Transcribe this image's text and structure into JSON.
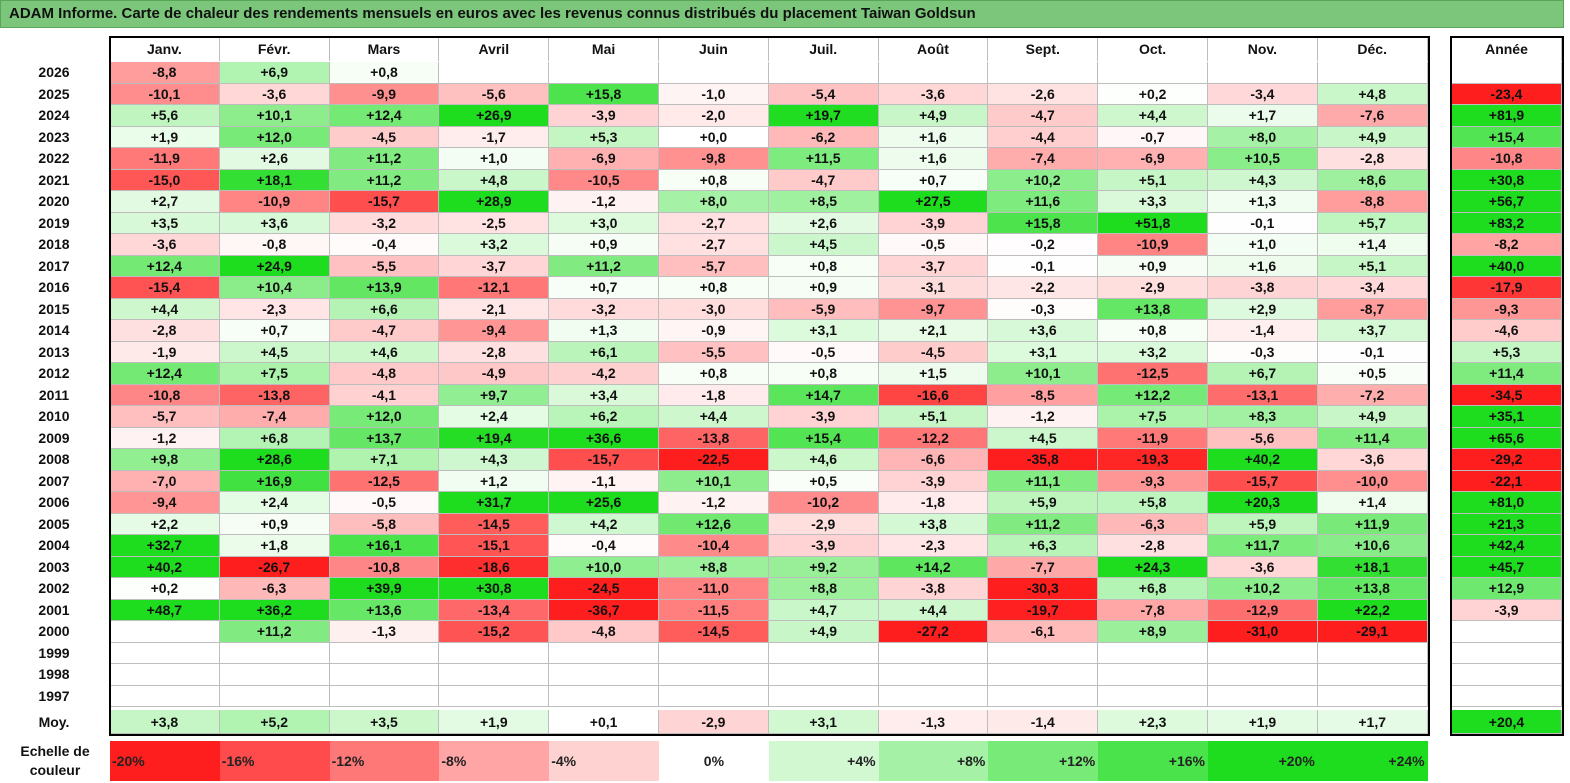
{
  "title": "ADAM Informe. Carte de chaleur des rendements mensuels en euros avec les revenus connus distribués du placement Taiwan Goldsun",
  "chart_data": {
    "type": "heatmap",
    "title": "ADAM Informe. Carte de chaleur des rendements mensuels en euros avec les revenus connus distribués du placement Taiwan Goldsun",
    "months": [
      "Janv.",
      "Févr.",
      "Mars",
      "Avril",
      "Mai",
      "Juin",
      "Juil.",
      "Août",
      "Sept.",
      "Oct.",
      "Nov.",
      "Déc."
    ],
    "year_header": "Année",
    "rows": [
      {
        "year": "2026",
        "values": [
          "-8,8",
          "+6,9",
          "+0,8",
          "",
          "",
          "",
          "",
          "",
          "",
          "",
          "",
          ""
        ],
        "annual": ""
      },
      {
        "year": "2025",
        "values": [
          "-10,1",
          "-3,6",
          "-9,9",
          "-5,6",
          "+15,8",
          "-1,0",
          "-5,4",
          "-3,6",
          "-2,6",
          "+0,2",
          "-3,4",
          "+4,8"
        ],
        "annual": "-23,4"
      },
      {
        "year": "2024",
        "values": [
          "+5,6",
          "+10,1",
          "+12,4",
          "+26,9",
          "-3,9",
          "-2,0",
          "+19,7",
          "+4,9",
          "-4,7",
          "+4,4",
          "+1,7",
          "-7,6"
        ],
        "annual": "+81,9"
      },
      {
        "year": "2023",
        "values": [
          "+1,9",
          "+12,0",
          "-4,5",
          "-1,7",
          "+5,3",
          "+0,0",
          "-6,2",
          "+1,6",
          "-4,4",
          "-0,7",
          "+8,0",
          "+4,9"
        ],
        "annual": "+15,4"
      },
      {
        "year": "2022",
        "values": [
          "-11,9",
          "+2,6",
          "+11,2",
          "+1,0",
          "-6,9",
          "-9,8",
          "+11,5",
          "+1,6",
          "-7,4",
          "-6,9",
          "+10,5",
          "-2,8"
        ],
        "annual": "-10,8"
      },
      {
        "year": "2021",
        "values": [
          "-15,0",
          "+18,1",
          "+11,2",
          "+4,8",
          "-10,5",
          "+0,8",
          "-4,7",
          "+0,7",
          "+10,2",
          "+5,1",
          "+4,3",
          "+8,6"
        ],
        "annual": "+30,8"
      },
      {
        "year": "2020",
        "values": [
          "+2,7",
          "-10,9",
          "-15,7",
          "+28,9",
          "-1,2",
          "+8,0",
          "+8,5",
          "+27,5",
          "+11,6",
          "+3,3",
          "+1,3",
          "-8,8"
        ],
        "annual": "+56,7"
      },
      {
        "year": "2019",
        "values": [
          "+3,5",
          "+3,6",
          "-3,2",
          "-2,5",
          "+3,0",
          "-2,7",
          "+2,6",
          "-3,9",
          "+15,8",
          "+51,8",
          "-0,1",
          "+5,7"
        ],
        "annual": "+83,2"
      },
      {
        "year": "2018",
        "values": [
          "-3,6",
          "-0,8",
          "-0,4",
          "+3,2",
          "+0,9",
          "-2,7",
          "+4,5",
          "-0,5",
          "-0,2",
          "-10,9",
          "+1,0",
          "+1,4"
        ],
        "annual": "-8,2"
      },
      {
        "year": "2017",
        "values": [
          "+12,4",
          "+24,9",
          "-5,5",
          "-3,7",
          "+11,2",
          "-5,7",
          "+0,8",
          "-3,7",
          "-0,1",
          "+0,9",
          "+1,6",
          "+5,1"
        ],
        "annual": "+40,0"
      },
      {
        "year": "2016",
        "values": [
          "-15,4",
          "+10,4",
          "+13,9",
          "-12,1",
          "+0,7",
          "+0,8",
          "+0,9",
          "-3,1",
          "-2,2",
          "-2,9",
          "-3,8",
          "-3,4"
        ],
        "annual": "-17,9"
      },
      {
        "year": "2015",
        "values": [
          "+4,4",
          "-2,3",
          "+6,6",
          "-2,1",
          "-3,2",
          "-3,0",
          "-5,9",
          "-9,7",
          "-0,3",
          "+13,8",
          "+2,9",
          "-8,7"
        ],
        "annual": "-9,3"
      },
      {
        "year": "2014",
        "values": [
          "-2,8",
          "+0,7",
          "-4,7",
          "-9,4",
          "+1,3",
          "-0,9",
          "+3,1",
          "+2,1",
          "+3,6",
          "+0,8",
          "-1,4",
          "+3,7"
        ],
        "annual": "-4,6"
      },
      {
        "year": "2013",
        "values": [
          "-1,9",
          "+4,5",
          "+4,6",
          "-2,8",
          "+6,1",
          "-5,5",
          "-0,5",
          "-4,5",
          "+3,1",
          "+3,2",
          "-0,3",
          "-0,1"
        ],
        "annual": "+5,3"
      },
      {
        "year": "2012",
        "values": [
          "+12,4",
          "+7,5",
          "-4,8",
          "-4,9",
          "-4,2",
          "+0,8",
          "+0,8",
          "+1,5",
          "+10,1",
          "-12,5",
          "+6,7",
          "+0,5"
        ],
        "annual": "+11,4"
      },
      {
        "year": "2011",
        "values": [
          "-10,8",
          "-13,8",
          "-4,1",
          "+9,7",
          "+3,4",
          "-1,8",
          "+14,7",
          "-16,6",
          "-8,5",
          "+12,2",
          "-13,1",
          "-7,2"
        ],
        "annual": "-34,5"
      },
      {
        "year": "2010",
        "values": [
          "-5,7",
          "-7,4",
          "+12,0",
          "+2,4",
          "+6,2",
          "+4,4",
          "-3,9",
          "+5,1",
          "-1,2",
          "+7,5",
          "+8,3",
          "+4,9"
        ],
        "annual": "+35,1"
      },
      {
        "year": "2009",
        "values": [
          "-1,2",
          "+6,8",
          "+13,7",
          "+19,4",
          "+36,6",
          "-13,8",
          "+15,4",
          "-12,2",
          "+4,5",
          "-11,9",
          "-5,6",
          "+11,4"
        ],
        "annual": "+65,6"
      },
      {
        "year": "2008",
        "values": [
          "+9,8",
          "+28,6",
          "+7,1",
          "+4,3",
          "-15,7",
          "-22,5",
          "+4,6",
          "-6,6",
          "-35,8",
          "-19,3",
          "+40,2",
          "-3,6"
        ],
        "annual": "-29,2"
      },
      {
        "year": "2007",
        "values": [
          "-7,0",
          "+16,9",
          "-12,5",
          "+1,2",
          "-1,1",
          "+10,1",
          "+0,5",
          "-3,9",
          "+11,1",
          "-9,3",
          "-15,7",
          "-10,0"
        ],
        "annual": "-22,1"
      },
      {
        "year": "2006",
        "values": [
          "-9,4",
          "+2,4",
          "-0,5",
          "+31,7",
          "+25,6",
          "-1,2",
          "-10,2",
          "-1,8",
          "+5,9",
          "+5,8",
          "+20,3",
          "+1,4"
        ],
        "annual": "+81,0"
      },
      {
        "year": "2005",
        "values": [
          "+2,2",
          "+0,9",
          "-5,8",
          "-14,5",
          "+4,2",
          "+12,6",
          "-2,9",
          "+3,8",
          "+11,2",
          "-6,3",
          "+5,9",
          "+11,9"
        ],
        "annual": "+21,3"
      },
      {
        "year": "2004",
        "values": [
          "+32,7",
          "+1,8",
          "+16,1",
          "-15,1",
          "-0,4",
          "-10,4",
          "-3,9",
          "-2,3",
          "+6,3",
          "-2,8",
          "+11,7",
          "+10,6"
        ],
        "annual": "+42,4"
      },
      {
        "year": "2003",
        "values": [
          "+40,2",
          "-26,7",
          "-10,8",
          "-18,6",
          "+10,0",
          "+8,8",
          "+9,2",
          "+14,2",
          "-7,7",
          "+24,3",
          "-3,6",
          "+18,1"
        ],
        "annual": "+45,7"
      },
      {
        "year": "2002",
        "values": [
          "+0,2",
          "-6,3",
          "+39,9",
          "+30,8",
          "-24,5",
          "-11,0",
          "+8,8",
          "-3,8",
          "-30,3",
          "+6,8",
          "+10,2",
          "+13,8"
        ],
        "annual": "+12,9"
      },
      {
        "year": "2001",
        "values": [
          "+48,7",
          "+36,2",
          "+13,6",
          "-13,4",
          "-36,7",
          "-11,5",
          "+4,7",
          "+4,4",
          "-19,7",
          "-7,8",
          "-12,9",
          "+22,2"
        ],
        "annual": "-3,9"
      },
      {
        "year": "2000",
        "values": [
          "",
          "+11,2",
          "-1,3",
          "-15,2",
          "-4,8",
          "-14,5",
          "+4,9",
          "-27,2",
          "-6,1",
          "+8,9",
          "-31,0",
          "-29,1"
        ],
        "annual": ""
      },
      {
        "year": "1999",
        "values": [
          "",
          "",
          "",
          "",
          "",
          "",
          "",
          "",
          "",
          "",
          "",
          ""
        ],
        "annual": ""
      },
      {
        "year": "1998",
        "values": [
          "",
          "",
          "",
          "",
          "",
          "",
          "",
          "",
          "",
          "",
          "",
          ""
        ],
        "annual": ""
      },
      {
        "year": "1997",
        "values": [
          "",
          "",
          "",
          "",
          "",
          "",
          "",
          "",
          "",
          "",
          "",
          ""
        ],
        "annual": ""
      }
    ],
    "average": {
      "label": "Moy.",
      "values": [
        "+3,8",
        "+5,2",
        "+3,5",
        "+1,9",
        "+0,1",
        "-2,9",
        "+3,1",
        "-1,3",
        "-1,4",
        "+2,3",
        "+1,9",
        "+1,7"
      ],
      "annual": "+20,4"
    },
    "scale": {
      "label": "Echelle de couleur",
      "steps": [
        "-20%",
        "-16%",
        "-12%",
        "-8%",
        "-4%",
        "0%",
        "+4%",
        "+8%",
        "+12%",
        "+16%",
        "+20%",
        "+24%"
      ]
    }
  }
}
